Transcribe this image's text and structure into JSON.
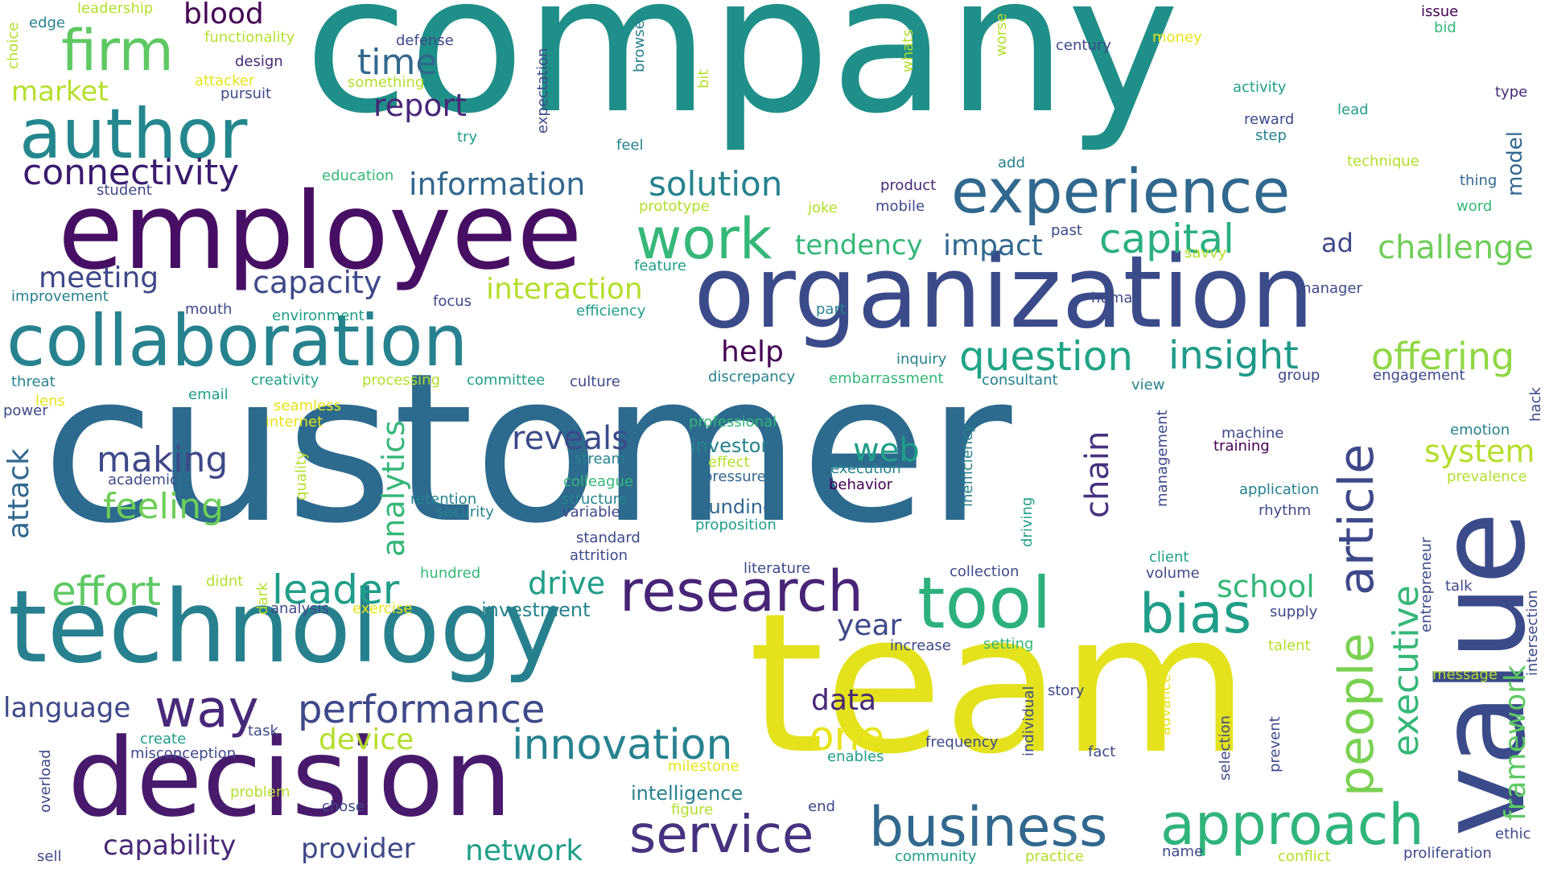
{
  "palette": [
    "#440154",
    "#482878",
    "#3e4989",
    "#31688e",
    "#26828e",
    "#1f9e89",
    "#35b779",
    "#6ece58",
    "#b5de2b",
    "#e8e419"
  ],
  "words": [
    {
      "text": "company",
      "color": "#1f8f89"
    },
    {
      "text": "customer",
      "color": "#2c6a8e"
    },
    {
      "text": "team",
      "color": "#e3e21c"
    },
    {
      "text": "employee",
      "color": "#470f63"
    },
    {
      "text": "organization",
      "color": "#3b4b8a"
    },
    {
      "text": "technology",
      "color": "#27808e"
    },
    {
      "text": "decision",
      "color": "#481a6c"
    },
    {
      "text": "value",
      "color": "#3b4b8a"
    },
    {
      "text": "collaboration",
      "color": "#26828e"
    },
    {
      "text": "author",
      "color": "#24878e"
    },
    {
      "text": "experience",
      "color": "#31688e"
    },
    {
      "text": "firm",
      "color": "#5ec962"
    },
    {
      "text": "tool",
      "color": "#2cb17e"
    },
    {
      "text": "research",
      "color": "#482476"
    },
    {
      "text": "business",
      "color": "#31688e"
    },
    {
      "text": "approach",
      "color": "#2fb47c"
    },
    {
      "text": "service",
      "color": "#46327e"
    },
    {
      "text": "work",
      "color": "#35b779"
    },
    {
      "text": "article",
      "color": "#3e4989"
    },
    {
      "text": "people",
      "color": "#79d151"
    },
    {
      "text": "bias",
      "color": "#1f9e89"
    },
    {
      "text": "way",
      "color": "#482878"
    },
    {
      "text": "performance",
      "color": "#3e4989"
    },
    {
      "text": "innovation",
      "color": "#26828e"
    },
    {
      "text": "question",
      "color": "#20a486"
    },
    {
      "text": "insight",
      "color": "#1f9a8a"
    },
    {
      "text": "offering",
      "color": "#8fd744"
    },
    {
      "text": "executive",
      "color": "#35b779"
    },
    {
      "text": "framework",
      "color": "#5ec962"
    },
    {
      "text": "capital",
      "color": "#2ab07f"
    },
    {
      "text": "connectivity",
      "color": "#3b1c6e"
    },
    {
      "text": "effort",
      "color": "#5ec962"
    },
    {
      "text": "leader",
      "color": "#1f9e89"
    },
    {
      "text": "one",
      "color": "#e8e419"
    },
    {
      "text": "challenge",
      "color": "#6ece58"
    },
    {
      "text": "solution",
      "color": "#26828e"
    },
    {
      "text": "information",
      "color": "#31688e"
    },
    {
      "text": "making",
      "color": "#3e4989"
    },
    {
      "text": "feeling",
      "color": "#6ece58"
    },
    {
      "text": "reveals",
      "color": "#3b4b8a"
    },
    {
      "text": "web",
      "color": "#1f9e89"
    },
    {
      "text": "chain",
      "color": "#46327e"
    },
    {
      "text": "system",
      "color": "#b5de2b"
    },
    {
      "text": "analytics",
      "color": "#35b779"
    },
    {
      "text": "attack",
      "color": "#31688e"
    },
    {
      "text": "time",
      "color": "#31688e"
    },
    {
      "text": "report",
      "color": "#482878"
    },
    {
      "text": "blood",
      "color": "#440154"
    },
    {
      "text": "market",
      "color": "#b5de2b"
    },
    {
      "text": "meeting",
      "color": "#3e4989"
    },
    {
      "text": "capacity",
      "color": "#3e4989"
    },
    {
      "text": "interaction",
      "color": "#b5de2b"
    },
    {
      "text": "tendency",
      "color": "#35b779"
    },
    {
      "text": "impact",
      "color": "#31688e"
    },
    {
      "text": "help",
      "color": "#440154"
    },
    {
      "text": "drive",
      "color": "#1f9e89"
    },
    {
      "text": "school",
      "color": "#35b779"
    },
    {
      "text": "year",
      "color": "#3e4989"
    },
    {
      "text": "data",
      "color": "#482878"
    },
    {
      "text": "language",
      "color": "#3e4989"
    },
    {
      "text": "device",
      "color": "#b5de2b"
    },
    {
      "text": "capability",
      "color": "#482878"
    },
    {
      "text": "provider",
      "color": "#3e4989"
    },
    {
      "text": "network",
      "color": "#1f9e89"
    },
    {
      "text": "intelligence",
      "color": "#26828e"
    },
    {
      "text": "investment",
      "color": "#26828e"
    },
    {
      "text": "funding",
      "color": "#31688e"
    },
    {
      "text": "investor",
      "color": "#26828e"
    },
    {
      "text": "model",
      "color": "#31688e"
    },
    {
      "text": "ad",
      "color": "#3e4989"
    },
    {
      "text": "edge",
      "color": "#26828e"
    },
    {
      "text": "leadership",
      "color": "#b5de2b"
    },
    {
      "text": "functionality",
      "color": "#b5de2b"
    },
    {
      "text": "choice",
      "color": "#b5de2b"
    },
    {
      "text": "design",
      "color": "#482878"
    },
    {
      "text": "attacker",
      "color": "#e8e419"
    },
    {
      "text": "pursuit",
      "color": "#3e4989"
    },
    {
      "text": "defense",
      "color": "#3e4989"
    },
    {
      "text": "something",
      "color": "#b5de2b"
    },
    {
      "text": "expectation",
      "color": "#3e4989"
    },
    {
      "text": "browser",
      "color": "#26828e"
    },
    {
      "text": "bit",
      "color": "#b5de2b"
    },
    {
      "text": "whats",
      "color": "#b5de2b"
    },
    {
      "text": "worse",
      "color": "#b5de2b"
    },
    {
      "text": "century",
      "color": "#3e4989"
    },
    {
      "text": "money",
      "color": "#e8e419"
    },
    {
      "text": "issue",
      "color": "#440154"
    },
    {
      "text": "bid",
      "color": "#35b779"
    },
    {
      "text": "type",
      "color": "#482878"
    },
    {
      "text": "activity",
      "color": "#1f9e89"
    },
    {
      "text": "lead",
      "color": "#1f9e89"
    },
    {
      "text": "reward",
      "color": "#3e4989"
    },
    {
      "text": "step",
      "color": "#26828e"
    },
    {
      "text": "technique",
      "color": "#b5de2b"
    },
    {
      "text": "thing",
      "color": "#31688e"
    },
    {
      "text": "word",
      "color": "#35b779"
    },
    {
      "text": "try",
      "color": "#1f9e89"
    },
    {
      "text": "feel",
      "color": "#26828e"
    },
    {
      "text": "add",
      "color": "#26828e"
    },
    {
      "text": "product",
      "color": "#482878"
    },
    {
      "text": "mobile",
      "color": "#3e4989"
    },
    {
      "text": "joke",
      "color": "#b5de2b"
    },
    {
      "text": "prototype",
      "color": "#b5de2b"
    },
    {
      "text": "feature",
      "color": "#1f9e89"
    },
    {
      "text": "past",
      "color": "#3e4989"
    },
    {
      "text": "savvy",
      "color": "#b5de2b"
    },
    {
      "text": "manager",
      "color": "#3e4989"
    },
    {
      "text": "human",
      "color": "#3e4989"
    },
    {
      "text": "part",
      "color": "#26828e"
    },
    {
      "text": "student",
      "color": "#3e4989"
    },
    {
      "text": "education",
      "color": "#35b779"
    },
    {
      "text": "improvement",
      "color": "#26828e"
    },
    {
      "text": "focus",
      "color": "#3e4989"
    },
    {
      "text": "mouth",
      "color": "#3e4989"
    },
    {
      "text": "environment",
      "color": "#1f9e89"
    },
    {
      "text": "efficiency",
      "color": "#1f9e89"
    },
    {
      "text": "inquiry",
      "color": "#26828e"
    },
    {
      "text": "consultant",
      "color": "#26828e"
    },
    {
      "text": "group",
      "color": "#3e4989"
    },
    {
      "text": "engagement",
      "color": "#3e4989"
    },
    {
      "text": "threat",
      "color": "#26828e"
    },
    {
      "text": "creativity",
      "color": "#1f9e89"
    },
    {
      "text": "processing",
      "color": "#b5de2b"
    },
    {
      "text": "committee",
      "color": "#1f9e89"
    },
    {
      "text": "culture",
      "color": "#3e4989"
    },
    {
      "text": "discrepancy",
      "color": "#26828e"
    },
    {
      "text": "embarrassment",
      "color": "#35b779"
    },
    {
      "text": "view",
      "color": "#26828e"
    },
    {
      "text": "lens",
      "color": "#e8e419"
    },
    {
      "text": "power",
      "color": "#3e4989"
    },
    {
      "text": "email",
      "color": "#1f9e89"
    },
    {
      "text": "seamless",
      "color": "#e8e419"
    },
    {
      "text": "internet",
      "color": "#e8e419"
    },
    {
      "text": "quality",
      "color": "#b5de2b"
    },
    {
      "text": "academic",
      "color": "#3e4989"
    },
    {
      "text": "professional",
      "color": "#35b779"
    },
    {
      "text": "effect",
      "color": "#b5de2b"
    },
    {
      "text": "pressure",
      "color": "#31688e"
    },
    {
      "text": "stream",
      "color": "#26828e"
    },
    {
      "text": "execution",
      "color": "#26828e"
    },
    {
      "text": "behavior",
      "color": "#440154"
    },
    {
      "text": "inefficiency",
      "color": "#26828e"
    },
    {
      "text": "management",
      "color": "#3e4989"
    },
    {
      "text": "machine",
      "color": "#3e4989"
    },
    {
      "text": "training",
      "color": "#440154"
    },
    {
      "text": "emotion",
      "color": "#26828e"
    },
    {
      "text": "hack",
      "color": "#3e4989"
    },
    {
      "text": "prevalence",
      "color": "#b5de2b"
    },
    {
      "text": "retention",
      "color": "#26828e"
    },
    {
      "text": "security",
      "color": "#26828e"
    },
    {
      "text": "colleague",
      "color": "#35b779"
    },
    {
      "text": "structure",
      "color": "#26828e"
    },
    {
      "text": "variable",
      "color": "#3e4989"
    },
    {
      "text": "application",
      "color": "#26828e"
    },
    {
      "text": "rhythm",
      "color": "#3e4989"
    },
    {
      "text": "entrepreneur",
      "color": "#3e4989"
    },
    {
      "text": "driving",
      "color": "#1f9e89"
    },
    {
      "text": "proposition",
      "color": "#1f9e89"
    },
    {
      "text": "standard",
      "color": "#3e4989"
    },
    {
      "text": "attrition",
      "color": "#3e4989"
    },
    {
      "text": "client",
      "color": "#1f9e89"
    },
    {
      "text": "volume",
      "color": "#3e4989"
    },
    {
      "text": "literature",
      "color": "#3e4989"
    },
    {
      "text": "collection",
      "color": "#3e4989"
    },
    {
      "text": "hundred",
      "color": "#35b779"
    },
    {
      "text": "didnt",
      "color": "#b5de2b"
    },
    {
      "text": "dark",
      "color": "#b5de2b"
    },
    {
      "text": "analysis",
      "color": "#3e4989"
    },
    {
      "text": "exercise",
      "color": "#e8e419"
    },
    {
      "text": "talk",
      "color": "#3e4989"
    },
    {
      "text": "supply",
      "color": "#3e4989"
    },
    {
      "text": "intersection",
      "color": "#3e4989"
    },
    {
      "text": "increase",
      "color": "#3e4989"
    },
    {
      "text": "setting",
      "color": "#35b779"
    },
    {
      "text": "talent",
      "color": "#b5de2b"
    },
    {
      "text": "message",
      "color": "#b5de2b"
    },
    {
      "text": "individual",
      "color": "#3e4989"
    },
    {
      "text": "advance",
      "color": "#e8e419"
    },
    {
      "text": "story",
      "color": "#3e4989"
    },
    {
      "text": "selection",
      "color": "#3e4989"
    },
    {
      "text": "prevent",
      "color": "#3e4989"
    },
    {
      "text": "frequency",
      "color": "#3e4989"
    },
    {
      "text": "fact",
      "color": "#3e4989"
    },
    {
      "text": "overload",
      "color": "#3e4989"
    },
    {
      "text": "create",
      "color": "#1f9e89"
    },
    {
      "text": "task",
      "color": "#3e4989"
    },
    {
      "text": "misconception",
      "color": "#3e4989"
    },
    {
      "text": "milestone",
      "color": "#e8e419"
    },
    {
      "text": "enables",
      "color": "#1f9e89"
    },
    {
      "text": "problem",
      "color": "#b5de2b"
    },
    {
      "text": "chose",
      "color": "#3e4989"
    },
    {
      "text": "figure",
      "color": "#b5de2b"
    },
    {
      "text": "end",
      "color": "#3e4989"
    },
    {
      "text": "sell",
      "color": "#3e4989"
    },
    {
      "text": "community",
      "color": "#1f9e89"
    },
    {
      "text": "practice",
      "color": "#b5de2b"
    },
    {
      "text": "name",
      "color": "#3e4989"
    },
    {
      "text": "conflict",
      "color": "#b5de2b"
    },
    {
      "text": "proliferation",
      "color": "#3e4989"
    },
    {
      "text": "ethic",
      "color": "#3e4989"
    }
  ]
}
